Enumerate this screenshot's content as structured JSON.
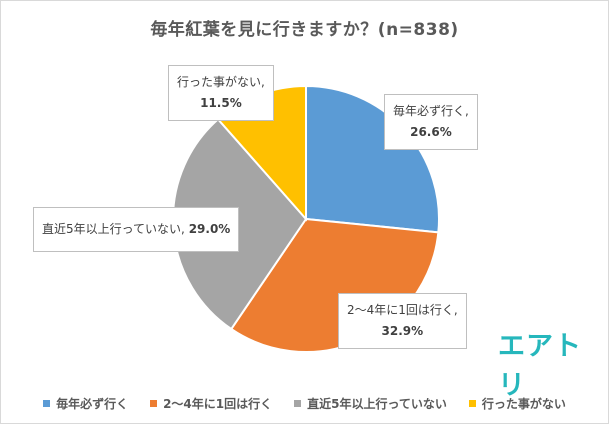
{
  "chart_data": {
    "type": "pie",
    "title": "毎年紅葉を見に行きますか？(n=838)",
    "categories": [
      "毎年必ず行く",
      "2〜4年に1回は行く",
      "直近5年以上行っていない",
      "行った事がない"
    ],
    "values": [
      26.6,
      32.9,
      29.0,
      11.5
    ],
    "colors": [
      "#5b9bd5",
      "#ed7d31",
      "#a5a5a5",
      "#ffc000"
    ],
    "data_labels": [
      {
        "name": "毎年必ず行く,",
        "pct": "26.6%"
      },
      {
        "name": "2〜4年に1回は行く,",
        "pct": "32.9%"
      },
      {
        "name": "直近5年以上行っていない,",
        "pct": "29.0%"
      },
      {
        "name": "行った事がない,",
        "pct": "11.5%"
      }
    ],
    "legend_position": "bottom",
    "start_angle": "12 o'clock",
    "direction": "clockwise"
  },
  "brand": "エアトリ"
}
